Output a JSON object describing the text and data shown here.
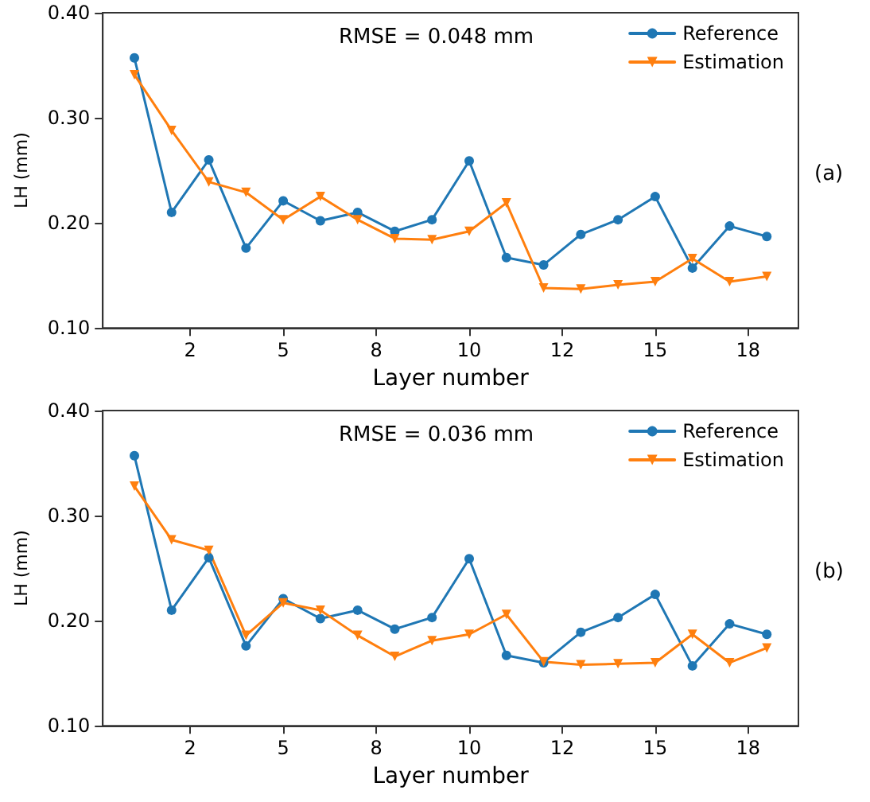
{
  "chart_data": [
    {
      "type": "line",
      "xlabel": "Layer number",
      "ylabel": "LH (mm)",
      "annotations": [
        "RMSE = 0.048 mm",
        "(a)"
      ],
      "legend": "top right",
      "grid": false,
      "x": [
        1,
        2,
        3,
        4,
        5,
        6,
        7,
        8,
        9,
        10,
        11,
        12,
        13,
        14,
        15,
        16,
        17,
        18
      ],
      "xlim": [
        0.15,
        18.85
      ],
      "xticks": [
        {
          "value": 2.5,
          "label": "2"
        },
        {
          "value": 5,
          "label": "5"
        },
        {
          "value": 7.5,
          "label": "8"
        },
        {
          "value": 10,
          "label": "10"
        },
        {
          "value": 12.5,
          "label": "12"
        },
        {
          "value": 15,
          "label": "15"
        },
        {
          "value": 17.5,
          "label": "18"
        }
      ],
      "ylim": [
        0.1,
        0.4
      ],
      "yticks": [
        {
          "value": 0.1,
          "label": "0.10"
        },
        {
          "value": 0.2,
          "label": "0.20"
        },
        {
          "value": 0.3,
          "label": "0.30"
        },
        {
          "value": 0.4,
          "label": "0.40"
        }
      ],
      "series": [
        {
          "name": "Reference",
          "color": "#1f77b4",
          "marker": "circle",
          "values": [
            0.357,
            0.21,
            0.26,
            0.176,
            0.221,
            0.202,
            0.21,
            0.192,
            0.203,
            0.259,
            0.167,
            0.16,
            0.189,
            0.203,
            0.225,
            0.157,
            0.197,
            0.187
          ]
        },
        {
          "name": "Estimation",
          "color": "#ff7f0e",
          "marker": "triangle",
          "values": [
            0.341,
            0.288,
            0.239,
            0.229,
            0.203,
            0.225,
            0.203,
            0.185,
            0.184,
            0.192,
            0.219,
            0.138,
            0.137,
            0.141,
            0.144,
            0.166,
            0.144,
            0.149
          ]
        }
      ]
    },
    {
      "type": "line",
      "xlabel": "Layer number",
      "ylabel": "LH (mm)",
      "annotations": [
        "RMSE = 0.036 mm",
        "(b)"
      ],
      "legend": "top right",
      "grid": false,
      "x": [
        1,
        2,
        3,
        4,
        5,
        6,
        7,
        8,
        9,
        10,
        11,
        12,
        13,
        14,
        15,
        16,
        17,
        18
      ],
      "xlim": [
        0.15,
        18.85
      ],
      "xticks": [
        {
          "value": 2.5,
          "label": "2"
        },
        {
          "value": 5,
          "label": "5"
        },
        {
          "value": 7.5,
          "label": "8"
        },
        {
          "value": 10,
          "label": "10"
        },
        {
          "value": 12.5,
          "label": "12"
        },
        {
          "value": 15,
          "label": "15"
        },
        {
          "value": 17.5,
          "label": "18"
        }
      ],
      "ylim": [
        0.1,
        0.4
      ],
      "yticks": [
        {
          "value": 0.1,
          "label": "0.10"
        },
        {
          "value": 0.2,
          "label": "0.20"
        },
        {
          "value": 0.3,
          "label": "0.30"
        },
        {
          "value": 0.4,
          "label": "0.40"
        }
      ],
      "series": [
        {
          "name": "Reference",
          "color": "#1f77b4",
          "marker": "circle",
          "values": [
            0.357,
            0.21,
            0.26,
            0.176,
            0.221,
            0.202,
            0.21,
            0.192,
            0.203,
            0.259,
            0.167,
            0.16,
            0.189,
            0.203,
            0.225,
            0.157,
            0.197,
            0.187
          ]
        },
        {
          "name": "Estimation",
          "color": "#ff7f0e",
          "marker": "triangle",
          "values": [
            0.328,
            0.277,
            0.267,
            0.186,
            0.217,
            0.21,
            0.186,
            0.166,
            0.181,
            0.187,
            0.206,
            0.161,
            0.158,
            0.159,
            0.16,
            0.187,
            0.16,
            0.174
          ]
        }
      ]
    }
  ]
}
